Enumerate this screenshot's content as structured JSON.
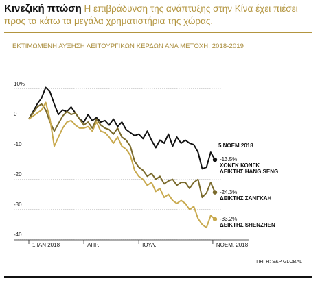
{
  "chart_data": {
    "type": "line",
    "title": "Κινεζική πτώση",
    "description": "Η επιβράδυνση της ανάπτυξης στην Κίνα έχει πιέσει προς τα κάτω τα μεγάλα χρηματιστήρια της χώρας.",
    "subtitle": "ΕΚΤΙΜΩΜΕΝΗ ΑΥΞΗΣΗ ΛΕΙΤΟΥΡΓΙΚΩΝ ΚΕΡΔΩΝ ΑΝΑ ΜΕΤΟΧΗ, 2018-2019",
    "source": "ΠΗΓΗ: S&P GLOBAL",
    "end_date_label": "5 ΝΟΕΜ 2018",
    "grid": true,
    "x": [
      0,
      1,
      2,
      3,
      4,
      5,
      6,
      7,
      8,
      9,
      10,
      11,
      12,
      13,
      14,
      15,
      16,
      17,
      18,
      19,
      20,
      21,
      22,
      23,
      24,
      25,
      26,
      27,
      28,
      29,
      30,
      31,
      32,
      33,
      34,
      35,
      36,
      37,
      38,
      39,
      40,
      41,
      42,
      43,
      44
    ],
    "xlim": [
      0,
      44
    ],
    "xticks": [
      {
        "value": 0,
        "label": "1 ΙΑΝ 2018"
      },
      {
        "value": 13,
        "label": "ΑΠΡ."
      },
      {
        "value": 26,
        "label": "ΙΟΥΛ."
      },
      {
        "value": 43.5,
        "label": "ΝΟΕΜ. 2018"
      }
    ],
    "ylim": [
      -41.5,
      13
    ],
    "yticks": [
      {
        "value": 10,
        "label": "10%"
      },
      0,
      -10,
      -20,
      -30,
      -40
    ],
    "series": [
      {
        "name": "ΧΟΝΓΚ ΚΟΝΓΚ\nΔΕΙΚΤΗΣ HANG SENG",
        "color": "#111111",
        "values": [
          0,
          2.5,
          5,
          7,
          10.5,
          9,
          5,
          1.5,
          3,
          2.5,
          4,
          2,
          0,
          -1,
          1.5,
          -0.5,
          0.5,
          -1,
          -0.5,
          -2,
          0,
          -2.5,
          -1,
          -3.5,
          -4.5,
          -5.5,
          -5,
          -6.5,
          -4,
          -7,
          -9.5,
          -7,
          -8,
          -5,
          -9,
          -6,
          -8,
          -7,
          -8,
          -8.5,
          -11,
          -16.5,
          -16,
          -11,
          -13.5
        ],
        "value_labels": [
          null,
          null,
          null,
          null,
          null,
          null,
          null,
          null,
          null,
          null,
          null,
          null,
          null,
          null,
          null,
          null,
          null,
          null,
          null,
          null,
          null,
          null,
          null,
          null,
          null,
          null,
          null,
          null,
          null,
          null,
          null,
          null,
          null,
          null,
          null,
          null,
          null,
          null,
          null,
          null,
          null,
          null,
          null,
          null,
          "-13.5%"
        ]
      },
      {
        "name": "ΔΕΙΚΤΗΣ ΣΑΝΓΚΑΗ",
        "color": "#7a6a2c",
        "values": [
          0,
          2,
          4,
          5,
          3,
          -1,
          -4,
          -1.5,
          1,
          2.5,
          1.5,
          2,
          0,
          -2,
          -1,
          -3,
          0,
          -2,
          -3,
          -3.5,
          -5,
          -3,
          -6,
          -7,
          -9,
          -14,
          -16,
          -17,
          -19,
          -18,
          -20,
          -19,
          -21.5,
          -20.5,
          -20,
          -22,
          -21,
          -21,
          -23,
          -21,
          -20,
          -26,
          -24.5,
          -21,
          -24.3
        ],
        "value_labels": [
          null,
          null,
          null,
          null,
          null,
          null,
          null,
          null,
          null,
          null,
          null,
          null,
          null,
          null,
          null,
          null,
          null,
          null,
          null,
          null,
          null,
          null,
          null,
          null,
          null,
          null,
          null,
          null,
          null,
          null,
          null,
          null,
          null,
          null,
          null,
          null,
          null,
          null,
          null,
          null,
          null,
          null,
          null,
          null,
          "-24.3%"
        ]
      },
      {
        "name": "ΔΕΙΚΤΗΣ SHENZHEN",
        "color": "#c8a94e",
        "values": [
          0,
          1,
          2,
          3,
          5.5,
          0,
          -9,
          -6,
          -3,
          -1,
          -0.5,
          -2,
          -3,
          -3,
          -2.5,
          -4,
          -1,
          -4,
          -4.5,
          -6,
          -8,
          -6,
          -9,
          -10,
          -12,
          -17,
          -19,
          -20,
          -22,
          -21,
          -24,
          -23,
          -26,
          -25,
          -27,
          -28,
          -27,
          -28,
          -30,
          -29,
          -33,
          -35,
          -36,
          -32,
          -33.2
        ],
        "value_labels": [
          null,
          null,
          null,
          null,
          null,
          null,
          null,
          null,
          null,
          null,
          null,
          null,
          null,
          null,
          null,
          null,
          null,
          null,
          null,
          null,
          null,
          null,
          null,
          null,
          null,
          null,
          null,
          null,
          null,
          null,
          null,
          null,
          null,
          null,
          null,
          null,
          null,
          null,
          null,
          null,
          null,
          null,
          null,
          null,
          "-33.2%"
        ]
      }
    ]
  }
}
